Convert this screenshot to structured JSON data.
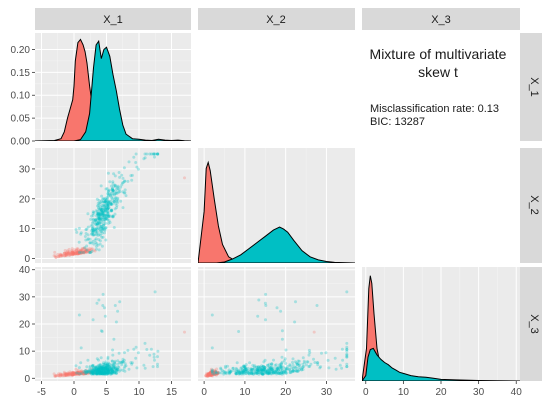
{
  "chart_data": {
    "type": "scatter",
    "layout": "pairs-matrix",
    "variables": [
      "X_1",
      "X_2",
      "X_3"
    ],
    "groups": [
      {
        "name": "",
        "color": "#F8766D"
      },
      {
        "name": "",
        "color": "#00BFC4"
      }
    ],
    "annotation": {
      "title_line1": "Mixture of multivariate",
      "title_line2": "skew t",
      "line1": "Misclassification rate: 0.13",
      "line2": "BIC: 13287"
    },
    "axes": {
      "X_1": {
        "range": [
          -6,
          18
        ],
        "ticks": [
          -5,
          0,
          5,
          10,
          15
        ]
      },
      "X_2": {
        "range": [
          -1.5,
          37
        ],
        "ticks": [
          0,
          10,
          20,
          30
        ]
      },
      "X_3": {
        "range": [
          -1,
          41
        ],
        "ticks": [
          0,
          10,
          20,
          30,
          40
        ]
      },
      "density_X1": {
        "range": [
          0,
          0.236
        ],
        "ticks": [
          0.0,
          0.05,
          0.1,
          0.15,
          0.2
        ],
        "tick_labels": [
          "0.00",
          "0.05",
          "0.10",
          "0.15",
          "0.20"
        ]
      }
    },
    "densities": {
      "X_1": {
        "red": [
          [
            -6,
            0
          ],
          [
            -3,
            0.001
          ],
          [
            -2,
            0.005
          ],
          [
            -1.5,
            0.02
          ],
          [
            -1,
            0.05
          ],
          [
            -0.6,
            0.07
          ],
          [
            -0.2,
            0.09
          ],
          [
            0,
            0.12
          ],
          [
            0.2,
            0.175
          ],
          [
            0.6,
            0.215
          ],
          [
            1,
            0.222
          ],
          [
            1.4,
            0.21
          ],
          [
            1.7,
            0.195
          ],
          [
            2,
            0.17
          ],
          [
            2.4,
            0.12
          ],
          [
            2.8,
            0.08
          ],
          [
            3.2,
            0.04
          ],
          [
            3.6,
            0.015
          ],
          [
            4.2,
            0.003
          ],
          [
            5,
            0
          ],
          [
            18,
            0
          ]
        ],
        "teal": [
          [
            -6,
            0
          ],
          [
            0,
            0
          ],
          [
            1,
            0.003
          ],
          [
            1.8,
            0.02
          ],
          [
            2.4,
            0.06
          ],
          [
            3,
            0.16
          ],
          [
            3.4,
            0.21
          ],
          [
            3.8,
            0.218
          ],
          [
            4.2,
            0.18
          ],
          [
            4.6,
            0.2
          ],
          [
            5,
            0.205
          ],
          [
            5.5,
            0.185
          ],
          [
            6,
            0.145
          ],
          [
            6.5,
            0.11
          ],
          [
            7,
            0.07
          ],
          [
            7.5,
            0.035
          ],
          [
            8,
            0.015
          ],
          [
            9,
            0.005
          ],
          [
            10,
            0.004
          ],
          [
            11,
            0.002
          ],
          [
            12,
            0.001
          ],
          [
            13,
            0.004
          ],
          [
            14,
            0.002
          ],
          [
            15,
            0.001
          ],
          [
            16,
            0.002
          ],
          [
            17,
            0.0005
          ],
          [
            18,
            0
          ]
        ]
      },
      "X_2": {
        "ymax": 1,
        "red": [
          [
            -1.5,
            0
          ],
          [
            0,
            0.5
          ],
          [
            0.5,
            0.92
          ],
          [
            1,
            0.98
          ],
          [
            1.5,
            0.9
          ],
          [
            2.5,
            0.62
          ],
          [
            3.5,
            0.36
          ],
          [
            4.5,
            0.18
          ],
          [
            6,
            0.06
          ],
          [
            8,
            0.015
          ],
          [
            10,
            0.003
          ],
          [
            12,
            0
          ],
          [
            37,
            0
          ]
        ],
        "teal": [
          [
            -1.5,
            0
          ],
          [
            3,
            0
          ],
          [
            5,
            0.01
          ],
          [
            7,
            0.04
          ],
          [
            9,
            0.08
          ],
          [
            11,
            0.14
          ],
          [
            13,
            0.2
          ],
          [
            15,
            0.26
          ],
          [
            17,
            0.32
          ],
          [
            18.5,
            0.35
          ],
          [
            19.5,
            0.33
          ],
          [
            20.5,
            0.3
          ],
          [
            22,
            0.22
          ],
          [
            24,
            0.12
          ],
          [
            26,
            0.06
          ],
          [
            28,
            0.03
          ],
          [
            30,
            0.015
          ],
          [
            32,
            0.006
          ],
          [
            35,
            0.002
          ],
          [
            37,
            0
          ]
        ]
      },
      "X_3": {
        "ymax": 1,
        "red": [
          [
            -1,
            0
          ],
          [
            0.2,
            0.3
          ],
          [
            0.8,
            0.85
          ],
          [
            1.2,
            0.97
          ],
          [
            1.6,
            0.9
          ],
          [
            2.2,
            0.62
          ],
          [
            3,
            0.3
          ],
          [
            4,
            0.12
          ],
          [
            5,
            0.04
          ],
          [
            6,
            0.01
          ],
          [
            8,
            0
          ],
          [
            41,
            0
          ]
        ],
        "teal": [
          [
            -1,
            0
          ],
          [
            0,
            0.05
          ],
          [
            0.6,
            0.22
          ],
          [
            1.2,
            0.29
          ],
          [
            2,
            0.3
          ],
          [
            3,
            0.24
          ],
          [
            4,
            0.2
          ],
          [
            5,
            0.17
          ],
          [
            6,
            0.15
          ],
          [
            7,
            0.12
          ],
          [
            8,
            0.1
          ],
          [
            9,
            0.08
          ],
          [
            10,
            0.07
          ],
          [
            12,
            0.05
          ],
          [
            14,
            0.04
          ],
          [
            16,
            0.035
          ],
          [
            18,
            0.025
          ],
          [
            20,
            0.015
          ],
          [
            24,
            0.01
          ],
          [
            30,
            0.005
          ],
          [
            35,
            0.002
          ],
          [
            41,
            0
          ]
        ]
      }
    },
    "scatter_clusters": {
      "red": {
        "x1": [
          -5,
          3.2
        ],
        "x2": [
          0,
          4.5
        ],
        "x3": [
          0,
          3.2
        ],
        "n": 150
      },
      "teal": {
        "x1": [
          1.5,
          15
        ],
        "x2": [
          3,
          35
        ],
        "x3": [
          0,
          38
        ],
        "n": 400
      }
    }
  }
}
